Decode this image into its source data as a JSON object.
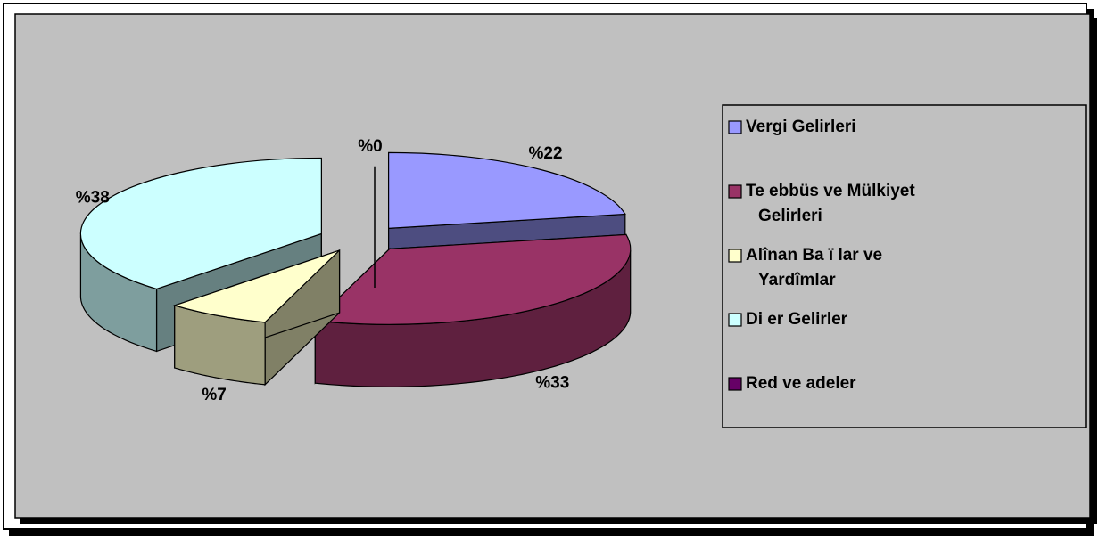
{
  "chart_data": {
    "type": "pie3d",
    "categories": [
      "Vergi Gelirleri",
      "Te ebbüs ve Mülkiyet Gelirleri",
      "Alînan Ba  ï lar ve Yardîmlar",
      "Di  er Gelirler",
      "Red ve  adeler"
    ],
    "values": [
      22,
      33,
      7,
      38,
      0
    ],
    "value_labels": [
      "%22",
      "%33",
      "%7",
      "%38",
      "%0"
    ],
    "colors": [
      "#9999ff",
      "#993366",
      "#ffffcc",
      "#ccffff",
      "#660066"
    ],
    "legend": "right"
  }
}
